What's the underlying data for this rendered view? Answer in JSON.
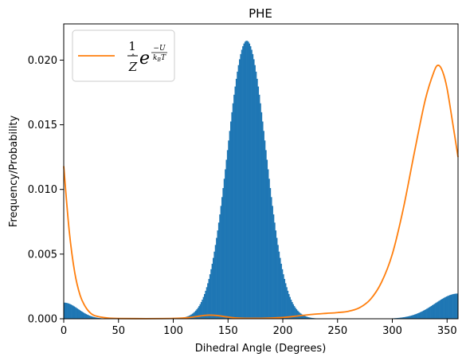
{
  "chart_data": {
    "type": "bar",
    "title": "PHE",
    "xlabel": "Dihedral Angle (Degrees)",
    "ylabel": "Frequency/Probability",
    "xlim": [
      0,
      360
    ],
    "ylim": [
      0,
      0.0228
    ],
    "x_ticks": [
      0,
      50,
      100,
      150,
      200,
      250,
      300,
      350
    ],
    "y_ticks": [
      0.0,
      0.005,
      0.01,
      0.015,
      0.02
    ],
    "x_tick_labels": [
      "0",
      "50",
      "100",
      "150",
      "200",
      "250",
      "300",
      "350"
    ],
    "y_tick_labels": [
      "0.000",
      "0.005",
      "0.010",
      "0.015",
      "0.020"
    ],
    "grid": false,
    "legend_position": "top-left",
    "colors": {
      "histogram": "#1f77b4",
      "curve": "#ff7f0e"
    },
    "histogram": {
      "bin_width": 1,
      "components": [
        {
          "mean": 167,
          "sd": 17.5,
          "peak": 0.0215
        },
        {
          "mean": 360,
          "sd": 21,
          "peak": 0.00195
        },
        {
          "mean": 0,
          "sd": 13,
          "peak": 0.00125
        }
      ]
    },
    "curve": {
      "legend_label": "1/Z e^(-U/(k_B T))",
      "points": [
        [
          0,
          0.0118
        ],
        [
          5,
          0.0068
        ],
        [
          10,
          0.0036
        ],
        [
          15,
          0.0018
        ],
        [
          20,
          0.0009
        ],
        [
          25,
          0.0004
        ],
        [
          30,
          0.0002
        ],
        [
          40,
          6e-05
        ],
        [
          50,
          2e-05
        ],
        [
          75,
          1e-05
        ],
        [
          100,
          3e-05
        ],
        [
          115,
          0.0001
        ],
        [
          125,
          0.00022
        ],
        [
          132,
          0.00028
        ],
        [
          140,
          0.00025
        ],
        [
          150,
          0.00013
        ],
        [
          160,
          5e-05
        ],
        [
          180,
          4e-05
        ],
        [
          200,
          0.0001
        ],
        [
          210,
          0.00018
        ],
        [
          220,
          0.00028
        ],
        [
          230,
          0.00036
        ],
        [
          240,
          0.00042
        ],
        [
          250,
          0.00048
        ],
        [
          260,
          0.00058
        ],
        [
          270,
          0.00085
        ],
        [
          280,
          0.0015
        ],
        [
          290,
          0.0028
        ],
        [
          300,
          0.005
        ],
        [
          310,
          0.0085
        ],
        [
          320,
          0.0128
        ],
        [
          330,
          0.0169
        ],
        [
          338,
          0.0191
        ],
        [
          342,
          0.0196
        ],
        [
          346,
          0.0191
        ],
        [
          350,
          0.0178
        ],
        [
          355,
          0.0152
        ],
        [
          360,
          0.0125
        ]
      ]
    }
  },
  "legend": {
    "prefix_numerator": "1",
    "prefix_denominator": "Z",
    "base": "e",
    "exp_numerator": "−U",
    "exp_denominator_k": "k",
    "exp_denominator_sub": "B",
    "exp_denominator_t": "T"
  }
}
